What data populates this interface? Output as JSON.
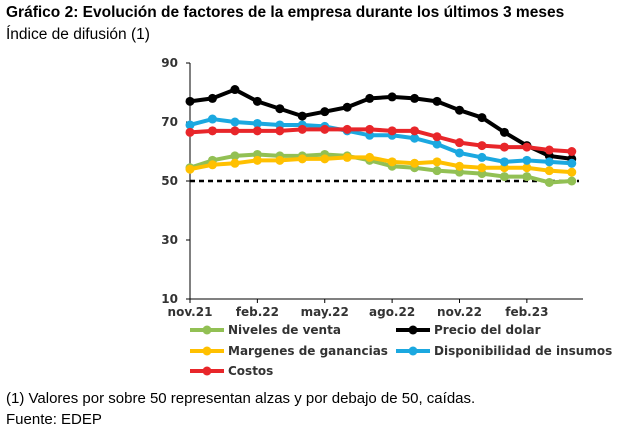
{
  "header": {
    "title": "Gráfico 2: Evolución de factores de la empresa durante los últimos 3 meses",
    "subtitle": "Índice de difusión (1)"
  },
  "footer": {
    "note": "(1) Valores por sobre 50 representan alzas y por debajo de 50, caídas.",
    "source": "Fuente: EDEP"
  },
  "chart_data": {
    "type": "line",
    "ylim": [
      10,
      90
    ],
    "yticks": [
      10,
      30,
      50,
      70,
      90
    ],
    "reference_line": 50,
    "x": [
      "nov.21",
      "dic.21",
      "ene.22",
      "feb.22",
      "mar.22",
      "abr.22",
      "may.22",
      "jun.22",
      "jul.22",
      "ago.22",
      "sep.22",
      "oct.22",
      "nov.22",
      "dic.22",
      "ene.23",
      "feb.23",
      "mar.23",
      "abr.23"
    ],
    "xtick_labels": [
      {
        "index": 0,
        "label": "nov.21"
      },
      {
        "index": 3,
        "label": "feb.22"
      },
      {
        "index": 6,
        "label": "may.22"
      },
      {
        "index": 9,
        "label": "ago.22"
      },
      {
        "index": 12,
        "label": "nov.22"
      },
      {
        "index": 15,
        "label": "feb.23"
      }
    ],
    "legend_position": "bottom",
    "series": [
      {
        "name": "Niveles de venta",
        "color": "#92c054",
        "values": [
          54.5,
          57,
          58.5,
          59,
          58.5,
          58.5,
          59,
          58.5,
          57,
          55,
          54.5,
          53.5,
          53,
          52.5,
          51.5,
          51.5,
          49.5,
          50
        ]
      },
      {
        "name": "Precio del dolar",
        "color": "#000000",
        "values": [
          77,
          78,
          81,
          77,
          74.5,
          72,
          73.5,
          75,
          78,
          78.5,
          78,
          77,
          74,
          71.5,
          66.5,
          62,
          58.5,
          57.5
        ]
      },
      {
        "name": "Margenes de ganancias",
        "color": "#ffc000",
        "values": [
          54,
          55.5,
          56,
          57,
          57,
          57.5,
          57.5,
          58,
          58,
          56.5,
          56,
          56.5,
          55,
          54.5,
          54.5,
          54.5,
          53.5,
          53
        ]
      },
      {
        "name": "Disponibilidad de insumos",
        "color": "#1ba8e0",
        "values": [
          69,
          71,
          70,
          69.5,
          69,
          69,
          68.5,
          67,
          65.5,
          65.5,
          64.5,
          62.5,
          59.5,
          58,
          56.5,
          57,
          56.5,
          56
        ]
      },
      {
        "name": "Costos",
        "color": "#e8262a",
        "values": [
          66.5,
          67,
          67,
          67,
          67,
          67.5,
          67.5,
          67.5,
          67.5,
          67,
          67,
          65,
          63,
          62,
          61.5,
          61.5,
          60.5,
          60
        ]
      }
    ]
  }
}
